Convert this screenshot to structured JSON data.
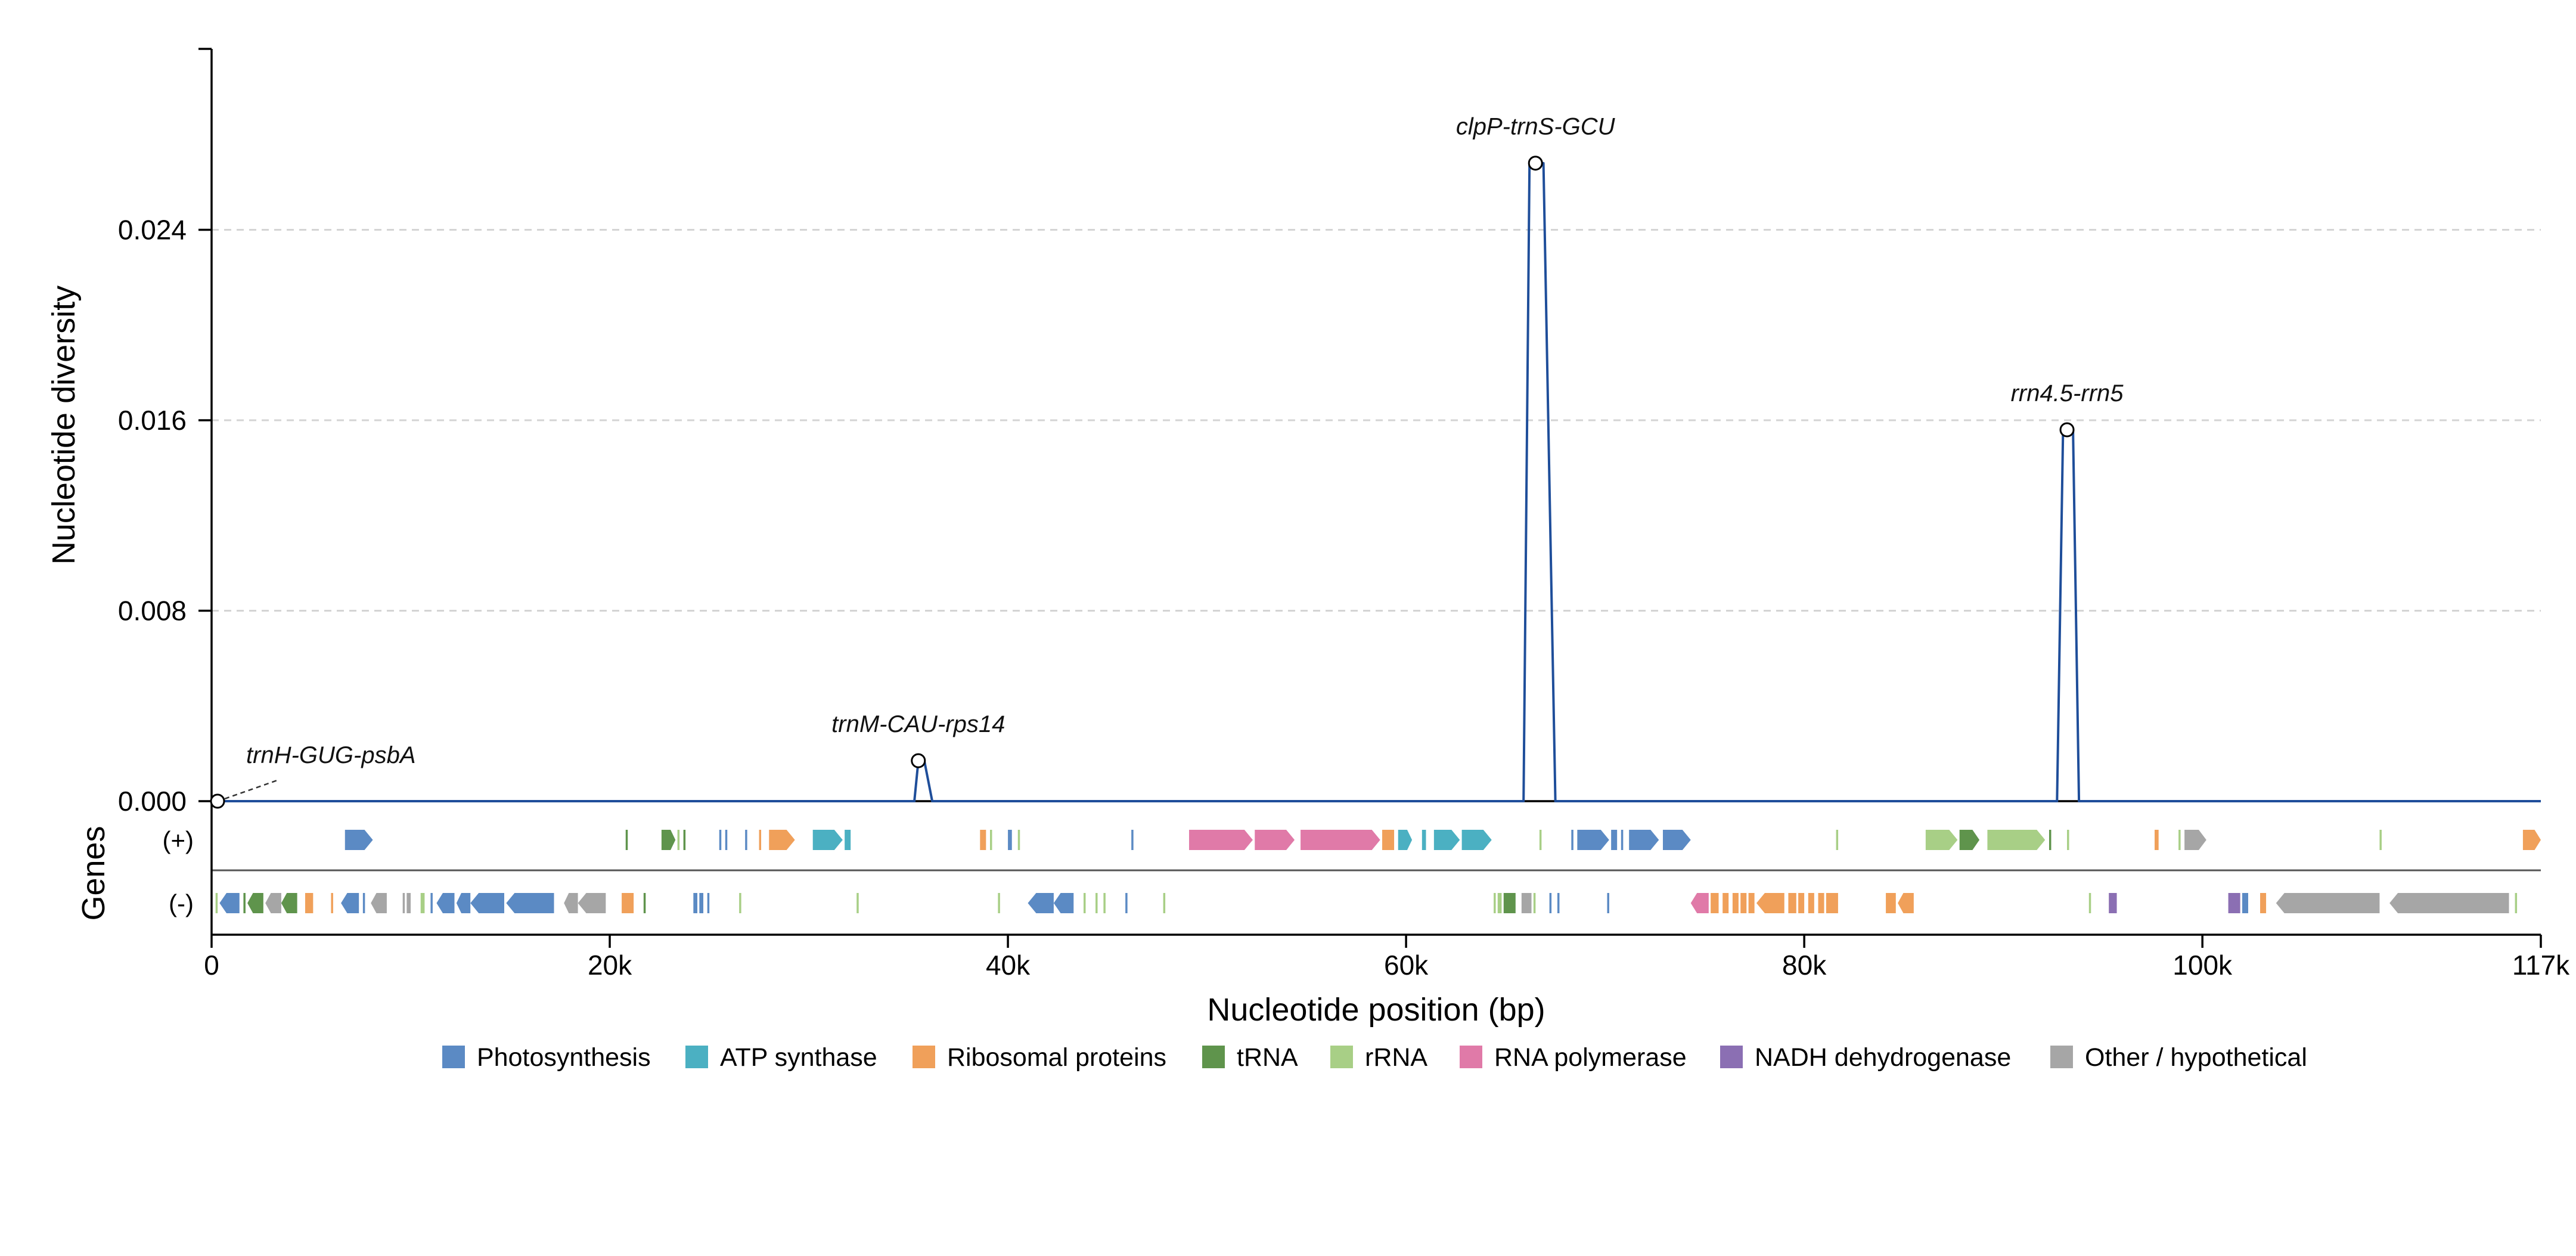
{
  "chart_data": {
    "type": "line",
    "ylabel": "Nucleotide diversity",
    "xlabel": "Nucleotide position (bp)",
    "genes_track_label": "Genes",
    "xlim": [
      0,
      117000
    ],
    "ylim": [
      0,
      0.0316
    ],
    "y_ticks": [
      {
        "value": 0,
        "label": "0.000"
      },
      {
        "value": 0.008,
        "label": "0.008"
      },
      {
        "value": 0.016,
        "label": "0.016"
      },
      {
        "value": 0.024,
        "label": "0.024"
      }
    ],
    "x_ticks": [
      {
        "value": 0,
        "label": "0"
      },
      {
        "value": 20000,
        "label": "20k"
      },
      {
        "value": 40000,
        "label": "40k"
      },
      {
        "value": 60000,
        "label": "60k"
      },
      {
        "value": 80000,
        "label": "80k"
      },
      {
        "value": 100000,
        "label": "100k"
      },
      {
        "value": 117000,
        "label": "117k"
      }
    ],
    "grid": "horizontal dashed",
    "line_color": "#1f4e9a",
    "series": [
      {
        "x": [
          0,
          35300,
          35500,
          35800,
          36200,
          65900,
          66200,
          66500,
          66900,
          67500,
          92700,
          93000,
          93200,
          93500,
          93800,
          117000
        ],
        "y": [
          0,
          0,
          0.0017,
          0.0017,
          0,
          0,
          0.0268,
          0.0268,
          0.0268,
          0,
          0,
          0.0156,
          0.0156,
          0.0156,
          0,
          0
        ]
      }
    ],
    "peaks": [
      {
        "label": "trnH-GUG-psbA",
        "x": 300,
        "y": 0.0
      },
      {
        "label": "trnM-CAU-rps14",
        "x": 35500,
        "y": 0.0017
      },
      {
        "label": "clpP-trnS-GCU",
        "x": 66500,
        "y": 0.0268
      },
      {
        "label": "rrn4.5-rrn5",
        "x": 93200,
        "y": 0.0156
      }
    ],
    "strand_labels": {
      "plus": "(+)",
      "minus": "(-)"
    },
    "categories": [
      {
        "key": "photo",
        "name": "Photosynthesis",
        "color": "#5b8ac4"
      },
      {
        "key": "atp",
        "name": "ATP synthase",
        "color": "#4bb0c2"
      },
      {
        "key": "ribo",
        "name": "Ribosomal proteins",
        "color": "#f0a05a"
      },
      {
        "key": "trna",
        "name": "tRNA",
        "color": "#5f944c"
      },
      {
        "key": "rrna",
        "name": "rRNA",
        "color": "#a8cf86"
      },
      {
        "key": "rnap",
        "name": "RNA polymerase",
        "color": "#e07aa8"
      },
      {
        "key": "ndh",
        "name": "NADH dehydrogenase",
        "color": "#8b6fb3"
      },
      {
        "key": "other",
        "name": "Other / hypothetical",
        "color": "#a6a6a6"
      }
    ],
    "genes_plus": [
      [
        6700,
        8100,
        "photo"
      ],
      [
        20800,
        20900,
        "trna"
      ],
      [
        22600,
        23300,
        "trna"
      ],
      [
        23400,
        23500,
        "rrna"
      ],
      [
        23700,
        23800,
        "trna"
      ],
      [
        25500,
        25600,
        "photo"
      ],
      [
        25800,
        25900,
        "photo"
      ],
      [
        26800,
        26900,
        "photo"
      ],
      [
        27500,
        27600,
        "ribo"
      ],
      [
        28000,
        29300,
        "ribo"
      ],
      [
        30200,
        31700,
        "atp"
      ],
      [
        31800,
        32100,
        "atp"
      ],
      [
        38600,
        38900,
        "ribo"
      ],
      [
        39100,
        39200,
        "rrna"
      ],
      [
        40000,
        40200,
        "photo"
      ],
      [
        40500,
        40600,
        "rrna"
      ],
      [
        46200,
        46300,
        "photo"
      ],
      [
        49100,
        52300,
        "rnap"
      ],
      [
        52400,
        54400,
        "rnap"
      ],
      [
        54700,
        58700,
        "rnap"
      ],
      [
        58800,
        59400,
        "ribo"
      ],
      [
        59600,
        60300,
        "atp"
      ],
      [
        60800,
        61000,
        "atp"
      ],
      [
        61400,
        62700,
        "atp"
      ],
      [
        62800,
        64300,
        "atp"
      ],
      [
        66700,
        66800,
        "rrna"
      ],
      [
        68300,
        68400,
        "photo"
      ],
      [
        68600,
        70200,
        "photo"
      ],
      [
        70300,
        70600,
        "photo"
      ],
      [
        70800,
        70900,
        "photo"
      ],
      [
        71200,
        72700,
        "photo"
      ],
      [
        72900,
        74300,
        "photo"
      ],
      [
        81600,
        81700,
        "rrna"
      ],
      [
        86100,
        87700,
        "rrna"
      ],
      [
        87800,
        88800,
        "trna"
      ],
      [
        89200,
        92100,
        "rrna"
      ],
      [
        92300,
        92400,
        "trna"
      ],
      [
        93200,
        93300,
        "rrna"
      ],
      [
        97600,
        97800,
        "ribo"
      ],
      [
        98800,
        98900,
        "rrna"
      ],
      [
        99100,
        100200,
        "other"
      ],
      [
        108900,
        109000,
        "rrna"
      ],
      [
        116100,
        117000,
        "ribo"
      ]
    ],
    "genes_minus": [
      [
        200,
        300,
        "rrna"
      ],
      [
        400,
        1400,
        "photo"
      ],
      [
        1600,
        1700,
        "trna"
      ],
      [
        1800,
        2600,
        "trna"
      ],
      [
        2700,
        3500,
        "other"
      ],
      [
        3500,
        4300,
        "trna"
      ],
      [
        4700,
        5100,
        "ribo"
      ],
      [
        6000,
        6100,
        "ribo"
      ],
      [
        6500,
        7400,
        "photo"
      ],
      [
        7600,
        7700,
        "photo"
      ],
      [
        8000,
        8800,
        "other"
      ],
      [
        9600,
        9700,
        "other"
      ],
      [
        9800,
        10000,
        "other"
      ],
      [
        10500,
        10700,
        "rrna"
      ],
      [
        11000,
        11100,
        "photo"
      ],
      [
        11300,
        12200,
        "photo"
      ],
      [
        12300,
        13000,
        "photo"
      ],
      [
        13000,
        14700,
        "photo"
      ],
      [
        14800,
        17200,
        "photo"
      ],
      [
        17700,
        18400,
        "other"
      ],
      [
        18400,
        19800,
        "other"
      ],
      [
        20600,
        21200,
        "ribo"
      ],
      [
        21700,
        21800,
        "trna"
      ],
      [
        24200,
        24400,
        "photo"
      ],
      [
        24500,
        24700,
        "photo"
      ],
      [
        24900,
        25000,
        "photo"
      ],
      [
        26500,
        26600,
        "rrna"
      ],
      [
        32400,
        32500,
        "rrna"
      ],
      [
        39500,
        39600,
        "rrna"
      ],
      [
        41000,
        42300,
        "photo"
      ],
      [
        42300,
        43300,
        "photo"
      ],
      [
        43800,
        43900,
        "rrna"
      ],
      [
        44400,
        44500,
        "rrna"
      ],
      [
        44800,
        44900,
        "rrna"
      ],
      [
        45900,
        46000,
        "photo"
      ],
      [
        47800,
        47900,
        "rrna"
      ],
      [
        64400,
        64500,
        "rrna"
      ],
      [
        64600,
        64800,
        "rrna"
      ],
      [
        64900,
        65500,
        "trna"
      ],
      [
        65800,
        66300,
        "other"
      ],
      [
        66400,
        66500,
        "rrna"
      ],
      [
        67200,
        67300,
        "photo"
      ],
      [
        67600,
        67700,
        "photo"
      ],
      [
        70100,
        70200,
        "photo"
      ],
      [
        74300,
        75200,
        "rnap"
      ],
      [
        75300,
        75700,
        "ribo"
      ],
      [
        75900,
        76200,
        "ribo"
      ],
      [
        76400,
        76700,
        "ribo"
      ],
      [
        76800,
        77100,
        "ribo"
      ],
      [
        77200,
        77500,
        "ribo"
      ],
      [
        77600,
        79000,
        "ribo"
      ],
      [
        79200,
        79600,
        "ribo"
      ],
      [
        79700,
        80000,
        "ribo"
      ],
      [
        80200,
        80500,
        "ribo"
      ],
      [
        80700,
        81000,
        "ribo"
      ],
      [
        81100,
        81700,
        "ribo"
      ],
      [
        84100,
        84600,
        "ribo"
      ],
      [
        84700,
        85500,
        "ribo"
      ],
      [
        94300,
        94400,
        "rrna"
      ],
      [
        95300,
        95700,
        "ndh"
      ],
      [
        101300,
        101900,
        "ndh"
      ],
      [
        102000,
        102300,
        "photo"
      ],
      [
        102900,
        103200,
        "ribo"
      ],
      [
        103700,
        108900,
        "other"
      ],
      [
        109400,
        115400,
        "other"
      ],
      [
        115700,
        115800,
        "rrna"
      ]
    ]
  }
}
